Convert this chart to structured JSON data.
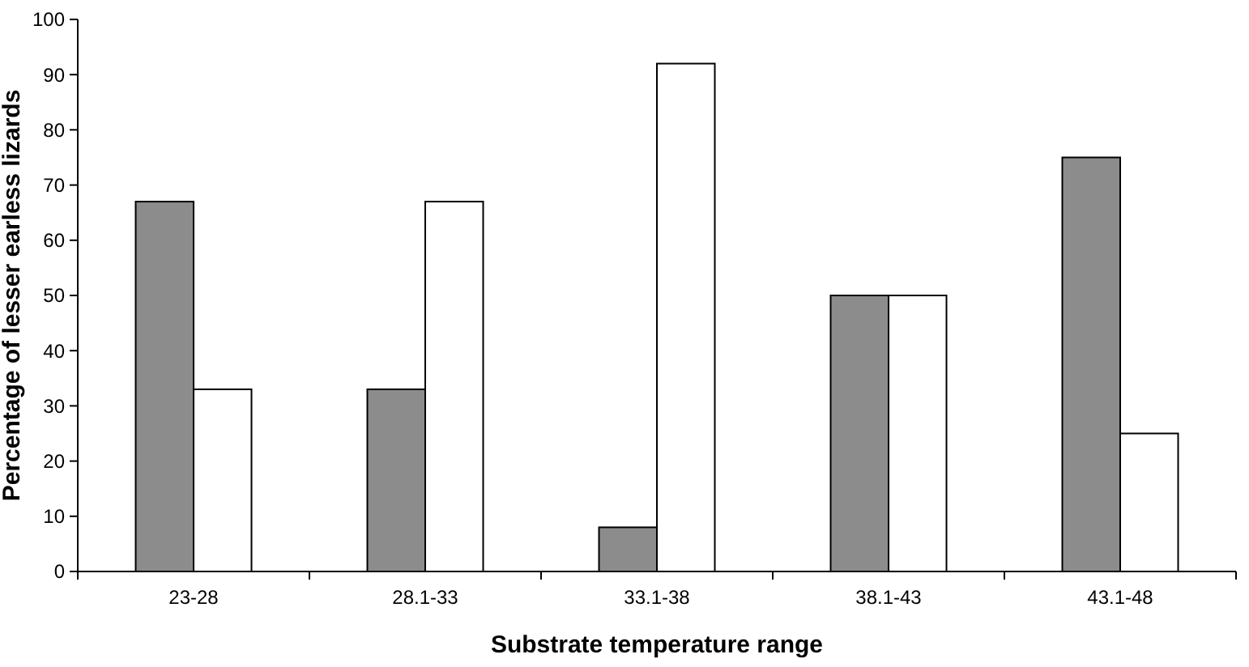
{
  "chart_data": {
    "type": "bar",
    "xlabel": "Substrate temperature range",
    "ylabel": "Percentage of lesser earless lizards",
    "categories": [
      "23-28",
      "28.1-33",
      "33.1-38",
      "38.1-43",
      "43.1-48"
    ],
    "series": [
      {
        "color": "#8c8c8c",
        "values": [
          67,
          33,
          8,
          50,
          75
        ]
      },
      {
        "color": "#ffffff",
        "values": [
          33,
          67,
          92,
          50,
          25
        ]
      }
    ],
    "ylim": [
      0,
      100
    ],
    "yticks": [
      0,
      10,
      20,
      30,
      40,
      50,
      60,
      70,
      80,
      90,
      100
    ],
    "grid": false
  }
}
